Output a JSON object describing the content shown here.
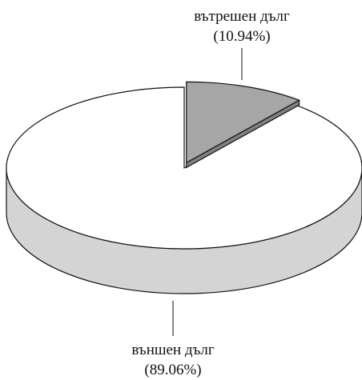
{
  "chart_data": {
    "type": "pie",
    "style": "3d-exploded",
    "categories": [
      "вътрешен дълг",
      "външен дълг"
    ],
    "values": [
      10.94,
      89.06
    ],
    "slices": [
      {
        "label": "вътрешен дълг",
        "percent_label": "(10.94%)",
        "value": 10.94,
        "exploded": true,
        "top_color": "#a6a6a6",
        "side_color": "#808080"
      },
      {
        "label": "външен дълг",
        "percent_label": "(89.06%)",
        "value": 89.06,
        "exploded": false,
        "top_color": "#ffffff",
        "side_color": "#d4d4d4"
      }
    ],
    "title": "",
    "legend": "none",
    "outline_color": "#111111"
  }
}
